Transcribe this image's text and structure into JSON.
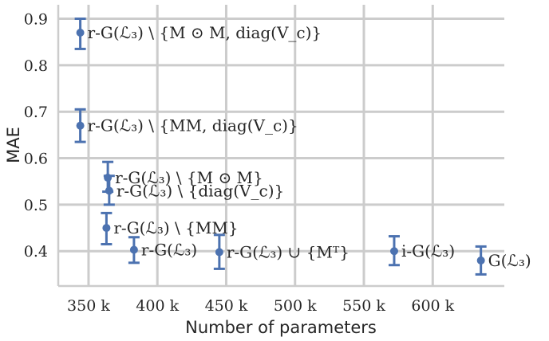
{
  "chart_data": {
    "type": "scatter",
    "xlabel": "Number of parameters",
    "ylabel": "MAE",
    "xlim": [
      328,
      652
    ],
    "ylim": [
      0.325,
      0.93
    ],
    "xticks": [
      350,
      400,
      450,
      500,
      550,
      600
    ],
    "xtick_labels": [
      "350 k",
      "400 k",
      "450 k",
      "500 k",
      "550 k",
      "600 k"
    ],
    "yticks": [
      0.4,
      0.5,
      0.6,
      0.7,
      0.8,
      0.9
    ],
    "ytick_labels": [
      "0.4",
      "0.5",
      "0.6",
      "0.7",
      "0.8",
      "0.9"
    ],
    "grid": true,
    "marker_color": "#4c72b0",
    "points": [
      {
        "label": "r-G(ℒ₃) \\ {M ⊙ M, diag(V_c)}",
        "x": 344,
        "y": 0.87,
        "err_low": 0.835,
        "err_high": 0.9
      },
      {
        "label": "r-G(ℒ₃) \\ {MM, diag(V_c)}",
        "x": 344,
        "y": 0.67,
        "err_low": 0.635,
        "err_high": 0.705
      },
      {
        "label": "r-G(ℒ₃) \\ {M ⊙ M}",
        "x": 364,
        "y": 0.558,
        "err_low": 0.528,
        "err_high": 0.592
      },
      {
        "label": "r-G(ℒ₃) \\ {diag(V_c)}",
        "x": 365,
        "y": 0.53,
        "err_low": 0.5,
        "err_high": 0.562
      },
      {
        "label": "r-G(ℒ₃) \\ {MM}",
        "x": 363,
        "y": 0.45,
        "err_low": 0.415,
        "err_high": 0.482
      },
      {
        "label": "r-G(ℒ₃)",
        "x": 383,
        "y": 0.403,
        "err_low": 0.375,
        "err_high": 0.43
      },
      {
        "label": "r-G(ℒ₃) ∪ {Mᵀ}",
        "x": 445,
        "y": 0.398,
        "err_low": 0.362,
        "err_high": 0.435
      },
      {
        "label": "i-G(ℒ₃)",
        "x": 572,
        "y": 0.4,
        "err_low": 0.37,
        "err_high": 0.432
      },
      {
        "label": "G(ℒ₃)",
        "x": 635,
        "y": 0.38,
        "err_low": 0.35,
        "err_high": 0.41
      }
    ]
  }
}
